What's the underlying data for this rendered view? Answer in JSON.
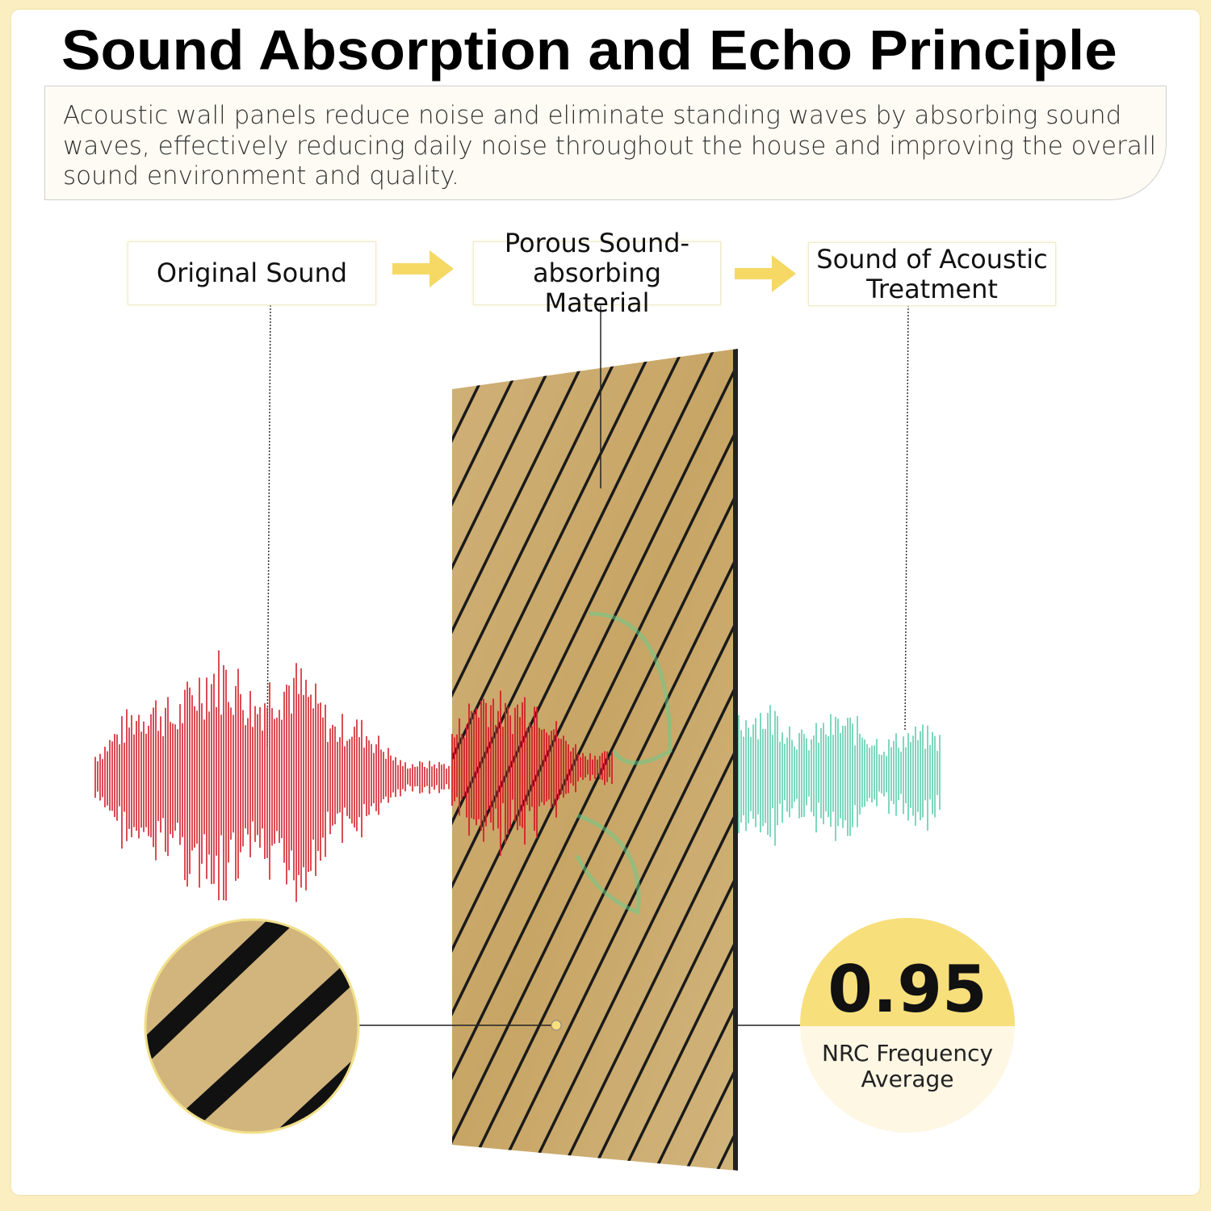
{
  "title": "Sound Absorption and Echo Principle",
  "description": "Acoustic wall panels reduce noise and eliminate standing waves by absorbing sound waves, effectively reducing daily noise throughout the house and improving the overall sound environment and quality.",
  "flow": [
    {
      "label": "Original Sound"
    },
    {
      "label": "Porous Sound-absorbing Material"
    },
    {
      "label": "Sound of Acoustic Treatment"
    }
  ],
  "stat": {
    "value": "0.95",
    "caption": "NRC Frequency Average"
  },
  "colors": {
    "background": "#fbefc2",
    "accent_yellow": "#f7df7c",
    "wood": "#c9a96a",
    "groove": "#1a1a1a",
    "original_wave": "#d4202a",
    "treated_wave": "#5fcfae"
  },
  "icons": [
    "arrow-right-icon",
    "arrow-right-icon"
  ]
}
